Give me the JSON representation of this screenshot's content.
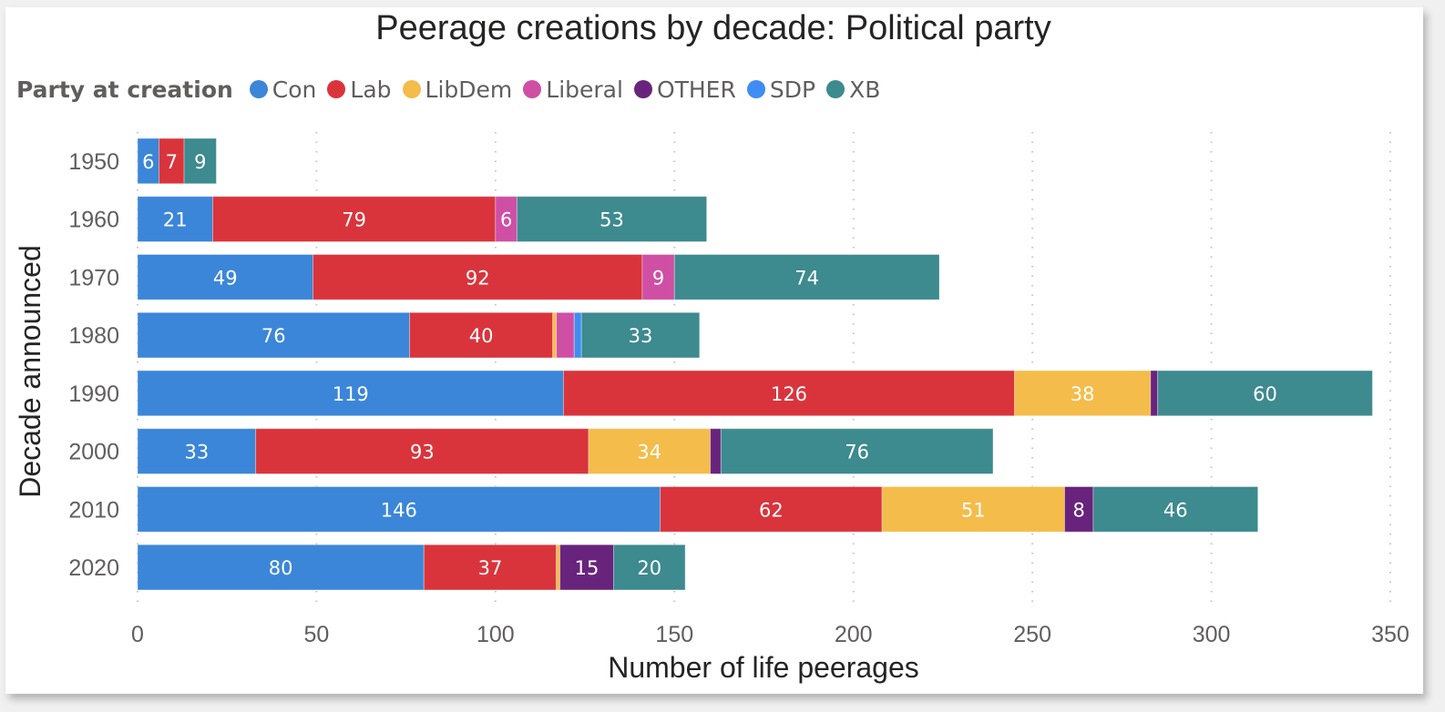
{
  "chart_data": {
    "type": "bar",
    "orientation": "horizontal",
    "stacked": true,
    "title": "Peerage creations by decade: Political party",
    "xlabel": "Number of life peerages",
    "ylabel": "Decade announced",
    "legend_title": "Party at creation",
    "legend_position": "top-left",
    "xlim": [
      0,
      350
    ],
    "xticks": [
      "0",
      "50",
      "100",
      "150",
      "200",
      "250",
      "300",
      "350"
    ],
    "xtick_values": [
      0,
      50,
      100,
      150,
      200,
      250,
      300,
      350
    ],
    "grid": "vertical dotted",
    "categories": [
      "1950",
      "1960",
      "1970",
      "1980",
      "1990",
      "2000",
      "2010",
      "2020"
    ],
    "series": [
      {
        "name": "Con",
        "color": "#3b86d8",
        "values": [
          6,
          21,
          49,
          76,
          119,
          33,
          146,
          80
        ]
      },
      {
        "name": "Lab",
        "color": "#d9343c",
        "values": [
          7,
          79,
          92,
          40,
          126,
          93,
          62,
          37
        ]
      },
      {
        "name": "LibDem",
        "color": "#f4bc4a",
        "values": [
          0,
          0,
          0,
          1,
          38,
          34,
          51,
          1
        ]
      },
      {
        "name": "Liberal",
        "color": "#cf4fa4",
        "values": [
          0,
          6,
          9,
          5,
          0,
          0,
          0,
          0
        ]
      },
      {
        "name": "OTHER",
        "color": "#68247c",
        "values": [
          0,
          0,
          0,
          0,
          2,
          3,
          8,
          15
        ]
      },
      {
        "name": "SDP",
        "color": "#3f8cf2",
        "values": [
          0,
          0,
          0,
          2,
          0,
          0,
          0,
          0
        ]
      },
      {
        "name": "XB",
        "color": "#3d8a8f",
        "values": [
          9,
          53,
          74,
          33,
          60,
          76,
          46,
          20
        ]
      }
    ],
    "label_min_value": 6
  }
}
